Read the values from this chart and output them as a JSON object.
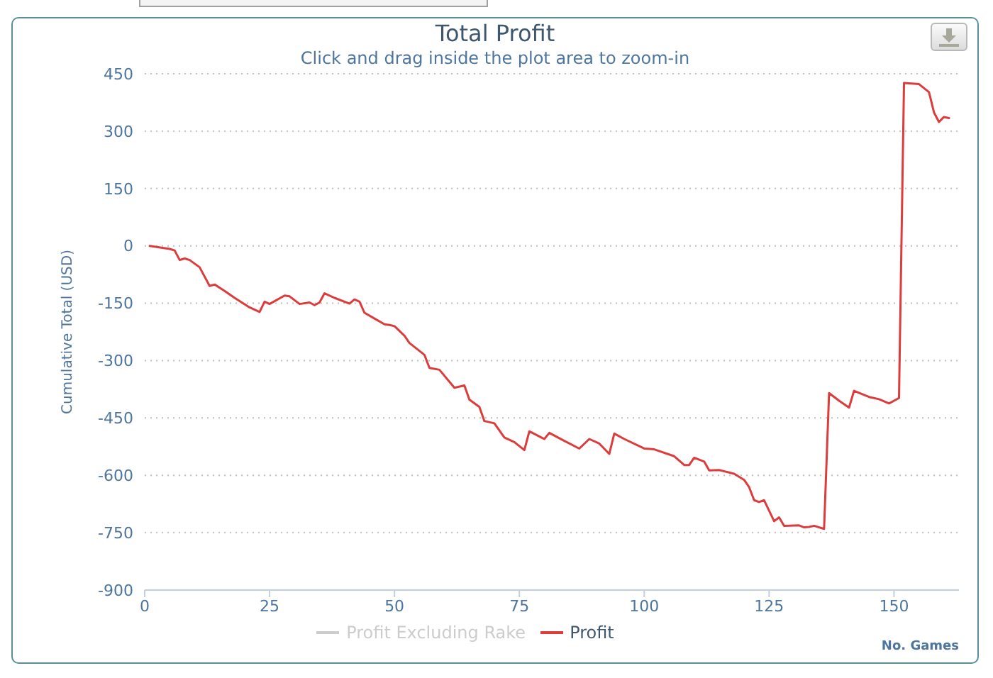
{
  "chart_data": {
    "type": "line",
    "title": "Total Profit",
    "subtitle": "Click and drag inside the plot area to zoom-in",
    "xlabel": "No. Games",
    "ylabel": "Cumulative Total (USD)",
    "x": [
      1,
      5,
      6,
      7,
      8,
      9,
      11,
      13,
      14,
      16,
      18,
      21,
      23,
      24,
      25,
      28,
      29,
      31,
      33,
      34,
      35,
      36,
      38,
      41,
      42,
      43,
      44,
      46,
      48,
      49,
      50,
      52,
      53,
      56,
      57,
      59,
      62,
      64,
      65,
      67,
      68,
      70,
      72,
      74,
      76,
      77,
      80,
      81,
      84,
      87,
      89,
      91,
      93,
      94,
      96,
      100,
      102,
      106,
      108,
      109,
      110,
      112,
      113,
      115,
      118,
      120,
      121,
      122,
      123,
      124,
      126,
      127,
      128,
      131,
      132,
      133,
      134,
      136,
      137,
      139,
      141,
      142,
      145,
      147,
      149,
      151,
      152,
      155,
      157,
      158,
      159,
      160,
      161
    ],
    "series": [
      {
        "name": "Profit Excluding Rake",
        "color": "#cccccc",
        "values": [
          null,
          null,
          null,
          null,
          null,
          null,
          null,
          null,
          null,
          null,
          null,
          null,
          null,
          null,
          null,
          null,
          null,
          null,
          null,
          null,
          null,
          null,
          null,
          null,
          null,
          null,
          null,
          null,
          null,
          null,
          null,
          null,
          null,
          null,
          null,
          null,
          null,
          null,
          null,
          null,
          null,
          null,
          null,
          null,
          null,
          null,
          null,
          null,
          null,
          null,
          null,
          null,
          null,
          null,
          null,
          null,
          null,
          null,
          null,
          null,
          null,
          null,
          null,
          null,
          null,
          null,
          null,
          null,
          null,
          null,
          null,
          null,
          null,
          null,
          null,
          null,
          null,
          null,
          null,
          null,
          null,
          null,
          null,
          null,
          null,
          null,
          null,
          null,
          null,
          null,
          null,
          null,
          null
        ]
      },
      {
        "name": "Profit",
        "color": "#dc3c3c",
        "values": [
          0,
          -8,
          -12,
          -37,
          -33,
          -37,
          -56,
          -105,
          -101,
          -118,
          -136,
          -161,
          -173,
          -146,
          -152,
          -130,
          -132,
          -152,
          -148,
          -155,
          -148,
          -124,
          -136,
          -151,
          -140,
          -146,
          -175,
          -190,
          -205,
          -207,
          -210,
          -235,
          -254,
          -285,
          -319,
          -324,
          -371,
          -365,
          -402,
          -421,
          -458,
          -464,
          -501,
          -513,
          -534,
          -485,
          -505,
          -489,
          -510,
          -530,
          -505,
          -517,
          -544,
          -491,
          -505,
          -530,
          -532,
          -550,
          -573,
          -573,
          -554,
          -564,
          -587,
          -586,
          -596,
          -612,
          -631,
          -665,
          -670,
          -665,
          -720,
          -710,
          -732,
          -731,
          -736,
          -735,
          -732,
          -740,
          -385,
          -405,
          -423,
          -379,
          -395,
          -401,
          -412,
          -398,
          426,
          423,
          402,
          349,
          324,
          337,
          334
        ]
      }
    ],
    "xlim": [
      0,
      163
    ],
    "xticks": [
      0,
      25,
      50,
      75,
      100,
      125,
      150
    ],
    "ylim": [
      -900,
      450
    ],
    "yticks": [
      -900,
      -750,
      -600,
      -450,
      -300,
      -150,
      0,
      150,
      300,
      450
    ],
    "grid": "y",
    "legend": "bottom",
    "line_style": "solid"
  }
}
